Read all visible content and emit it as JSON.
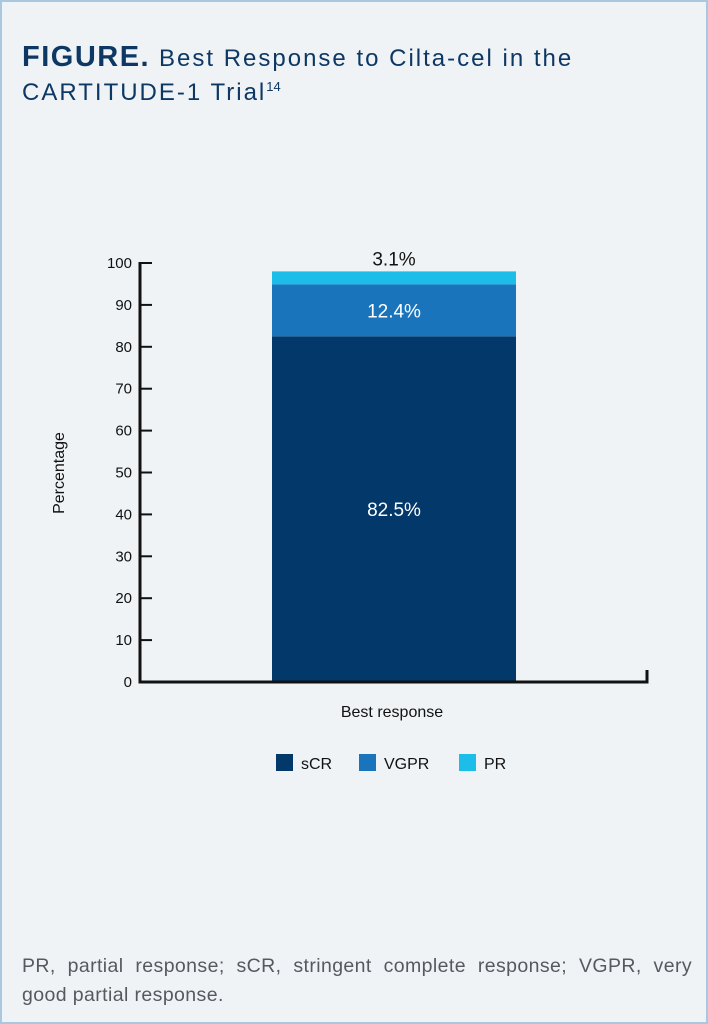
{
  "figure": {
    "lead": "FIGURE.",
    "title": "Best Response to Cilta-cel in the CARTITUDE-1 Trial",
    "title_sup": "14",
    "footnote": "PR, partial response; sCR, stringent complete response; VGPR, very good partial response."
  },
  "chart_data": {
    "type": "bar",
    "stacked": true,
    "categories": [
      "Best response"
    ],
    "series": [
      {
        "name": "sCR",
        "values": [
          82.5
        ],
        "color": "#02386a",
        "label": "82.5%",
        "label_color": "#ffffff"
      },
      {
        "name": "VGPR",
        "values": [
          12.4
        ],
        "color": "#1a74bc",
        "label": "12.4%",
        "label_color": "#ffffff"
      },
      {
        "name": "PR",
        "values": [
          3.1
        ],
        "color": "#1dbdea",
        "label": "3.1%",
        "label_color": "#111111"
      }
    ],
    "xlabel": "Best response",
    "ylabel": "Percentage",
    "ylim": [
      0,
      100
    ],
    "yticks": [
      0,
      10,
      20,
      30,
      40,
      50,
      60,
      70,
      80,
      90,
      100
    ],
    "legend": "bottom",
    "grid": false
  }
}
